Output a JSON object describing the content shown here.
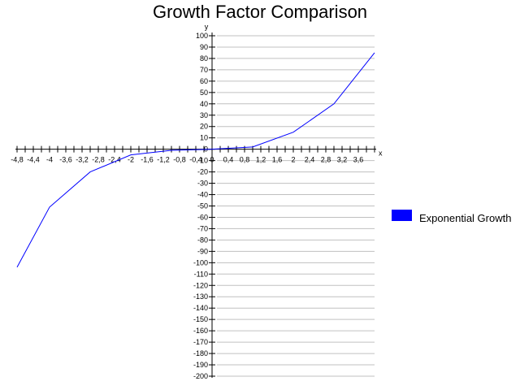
{
  "chart_data": {
    "type": "line",
    "title": "Growth Factor Comparison",
    "xlabel": "x",
    "ylabel": "y",
    "xlim": [
      -4.8,
      4.0
    ],
    "ylim": [
      -200,
      100
    ],
    "grid": {
      "horizontal": true,
      "vertical": false
    },
    "x_ticks": [
      -4.8,
      -4.4,
      -4,
      -3.6,
      -3.2,
      -2.8,
      -2.4,
      -2,
      -1.6,
      -1.2,
      -0.8,
      -0.4,
      0,
      0.4,
      0.8,
      1.2,
      1.6,
      2,
      2.4,
      2.8,
      3.2,
      3.6
    ],
    "x_tick_labels": [
      "-4,8",
      "-4,4",
      "-4",
      "-3,6",
      "-3,2",
      "-2,8",
      "-2,4",
      "-2",
      "-1,6",
      "-1,2",
      "-0,8",
      "-0,4",
      "0",
      "0,4",
      "0,8",
      "1,2",
      "1,6",
      "2",
      "2,4",
      "2,8",
      "3,2",
      "3,6"
    ],
    "y_ticks": [
      100,
      90,
      80,
      70,
      60,
      50,
      40,
      30,
      20,
      10,
      0,
      -10,
      -20,
      -30,
      -40,
      -50,
      -60,
      -70,
      -80,
      -90,
      -100,
      -110,
      -120,
      -130,
      -140,
      -150,
      -160,
      -170,
      -180,
      -190,
      -200
    ],
    "legend_position": "right",
    "series": [
      {
        "name": "Exponential Growth",
        "color": "#0000ff",
        "points": [
          [
            -4.8,
            -104
          ],
          [
            -4.0,
            -51
          ],
          [
            -3.0,
            -20
          ],
          [
            -2.0,
            -5
          ],
          [
            -1.0,
            -1
          ],
          [
            0.0,
            0
          ],
          [
            1.0,
            2
          ],
          [
            2.0,
            15
          ],
          [
            3.0,
            40
          ],
          [
            4.0,
            85
          ]
        ]
      }
    ]
  }
}
